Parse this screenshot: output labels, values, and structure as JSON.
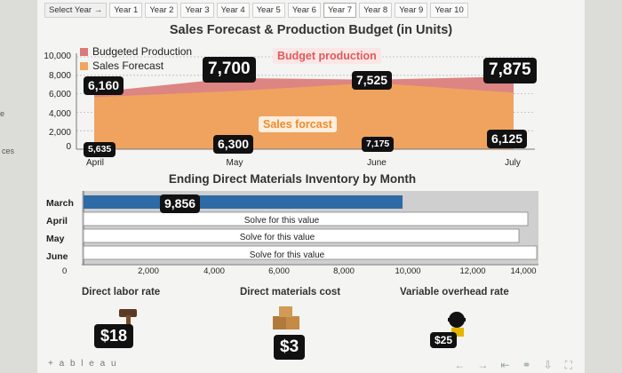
{
  "side_labels": {
    "top": "e",
    "mid": "ces"
  },
  "tabs": [
    "Select Year →",
    "Year 1",
    "Year 2",
    "Year 3",
    "Year 4",
    "Year 5",
    "Year 6",
    "Year 7",
    "Year 8",
    "Year 9",
    "Year 10"
  ],
  "selected_tab": "Year 7",
  "title": "Sales Forecast & Production Budget (in Units)",
  "legend": [
    {
      "label": "Budgeted Production",
      "color": "#d97b78"
    },
    {
      "label": "Sales Forecast",
      "color": "#f0a65c"
    }
  ],
  "callouts": {
    "budget": "Budget production",
    "sales": "Sales forcast"
  },
  "chart_data": [
    {
      "type": "area",
      "title": "Sales Forecast & Production Budget (in Units)",
      "categories": [
        "April",
        "May",
        "June",
        "July"
      ],
      "yticks": [
        "10,000",
        "8,000",
        "6,000",
        "4,000",
        "2,000",
        "0"
      ],
      "ylim": [
        0,
        10000
      ],
      "series": [
        {
          "name": "Budgeted Production",
          "values": [
            6160,
            7700,
            7525,
            7875
          ],
          "labels": [
            "6,160",
            "7,700",
            "7,525",
            "7,875"
          ]
        },
        {
          "name": "Sales Forecast",
          "values": [
            5635,
            6300,
            7175,
            6125
          ],
          "labels": [
            "5,635",
            "6,300",
            "7,175",
            "6,125"
          ]
        }
      ]
    },
    {
      "type": "bar",
      "title": "Ending Direct Materials Inventory by Month",
      "categories": [
        "March",
        "April",
        "May",
        "June"
      ],
      "values": [
        9856,
        null,
        null,
        null
      ],
      "value_label": "9,856",
      "placeholder": "Solve for this value",
      "xticks": [
        "0",
        "2,000",
        "4,000",
        "6,000",
        "8,000",
        "10,000",
        "12,000",
        "14,000"
      ],
      "xlim": [
        0,
        14000
      ]
    }
  ],
  "subtitle": "Ending Direct Materials Inventory by Month",
  "kpis": [
    {
      "label": "Direct labor rate",
      "value": "$18"
    },
    {
      "label": "Direct materials cost",
      "value": "$3"
    },
    {
      "label": "Variable overhead rate",
      "value": "$25"
    }
  ],
  "footer": "+ a b l e a u"
}
